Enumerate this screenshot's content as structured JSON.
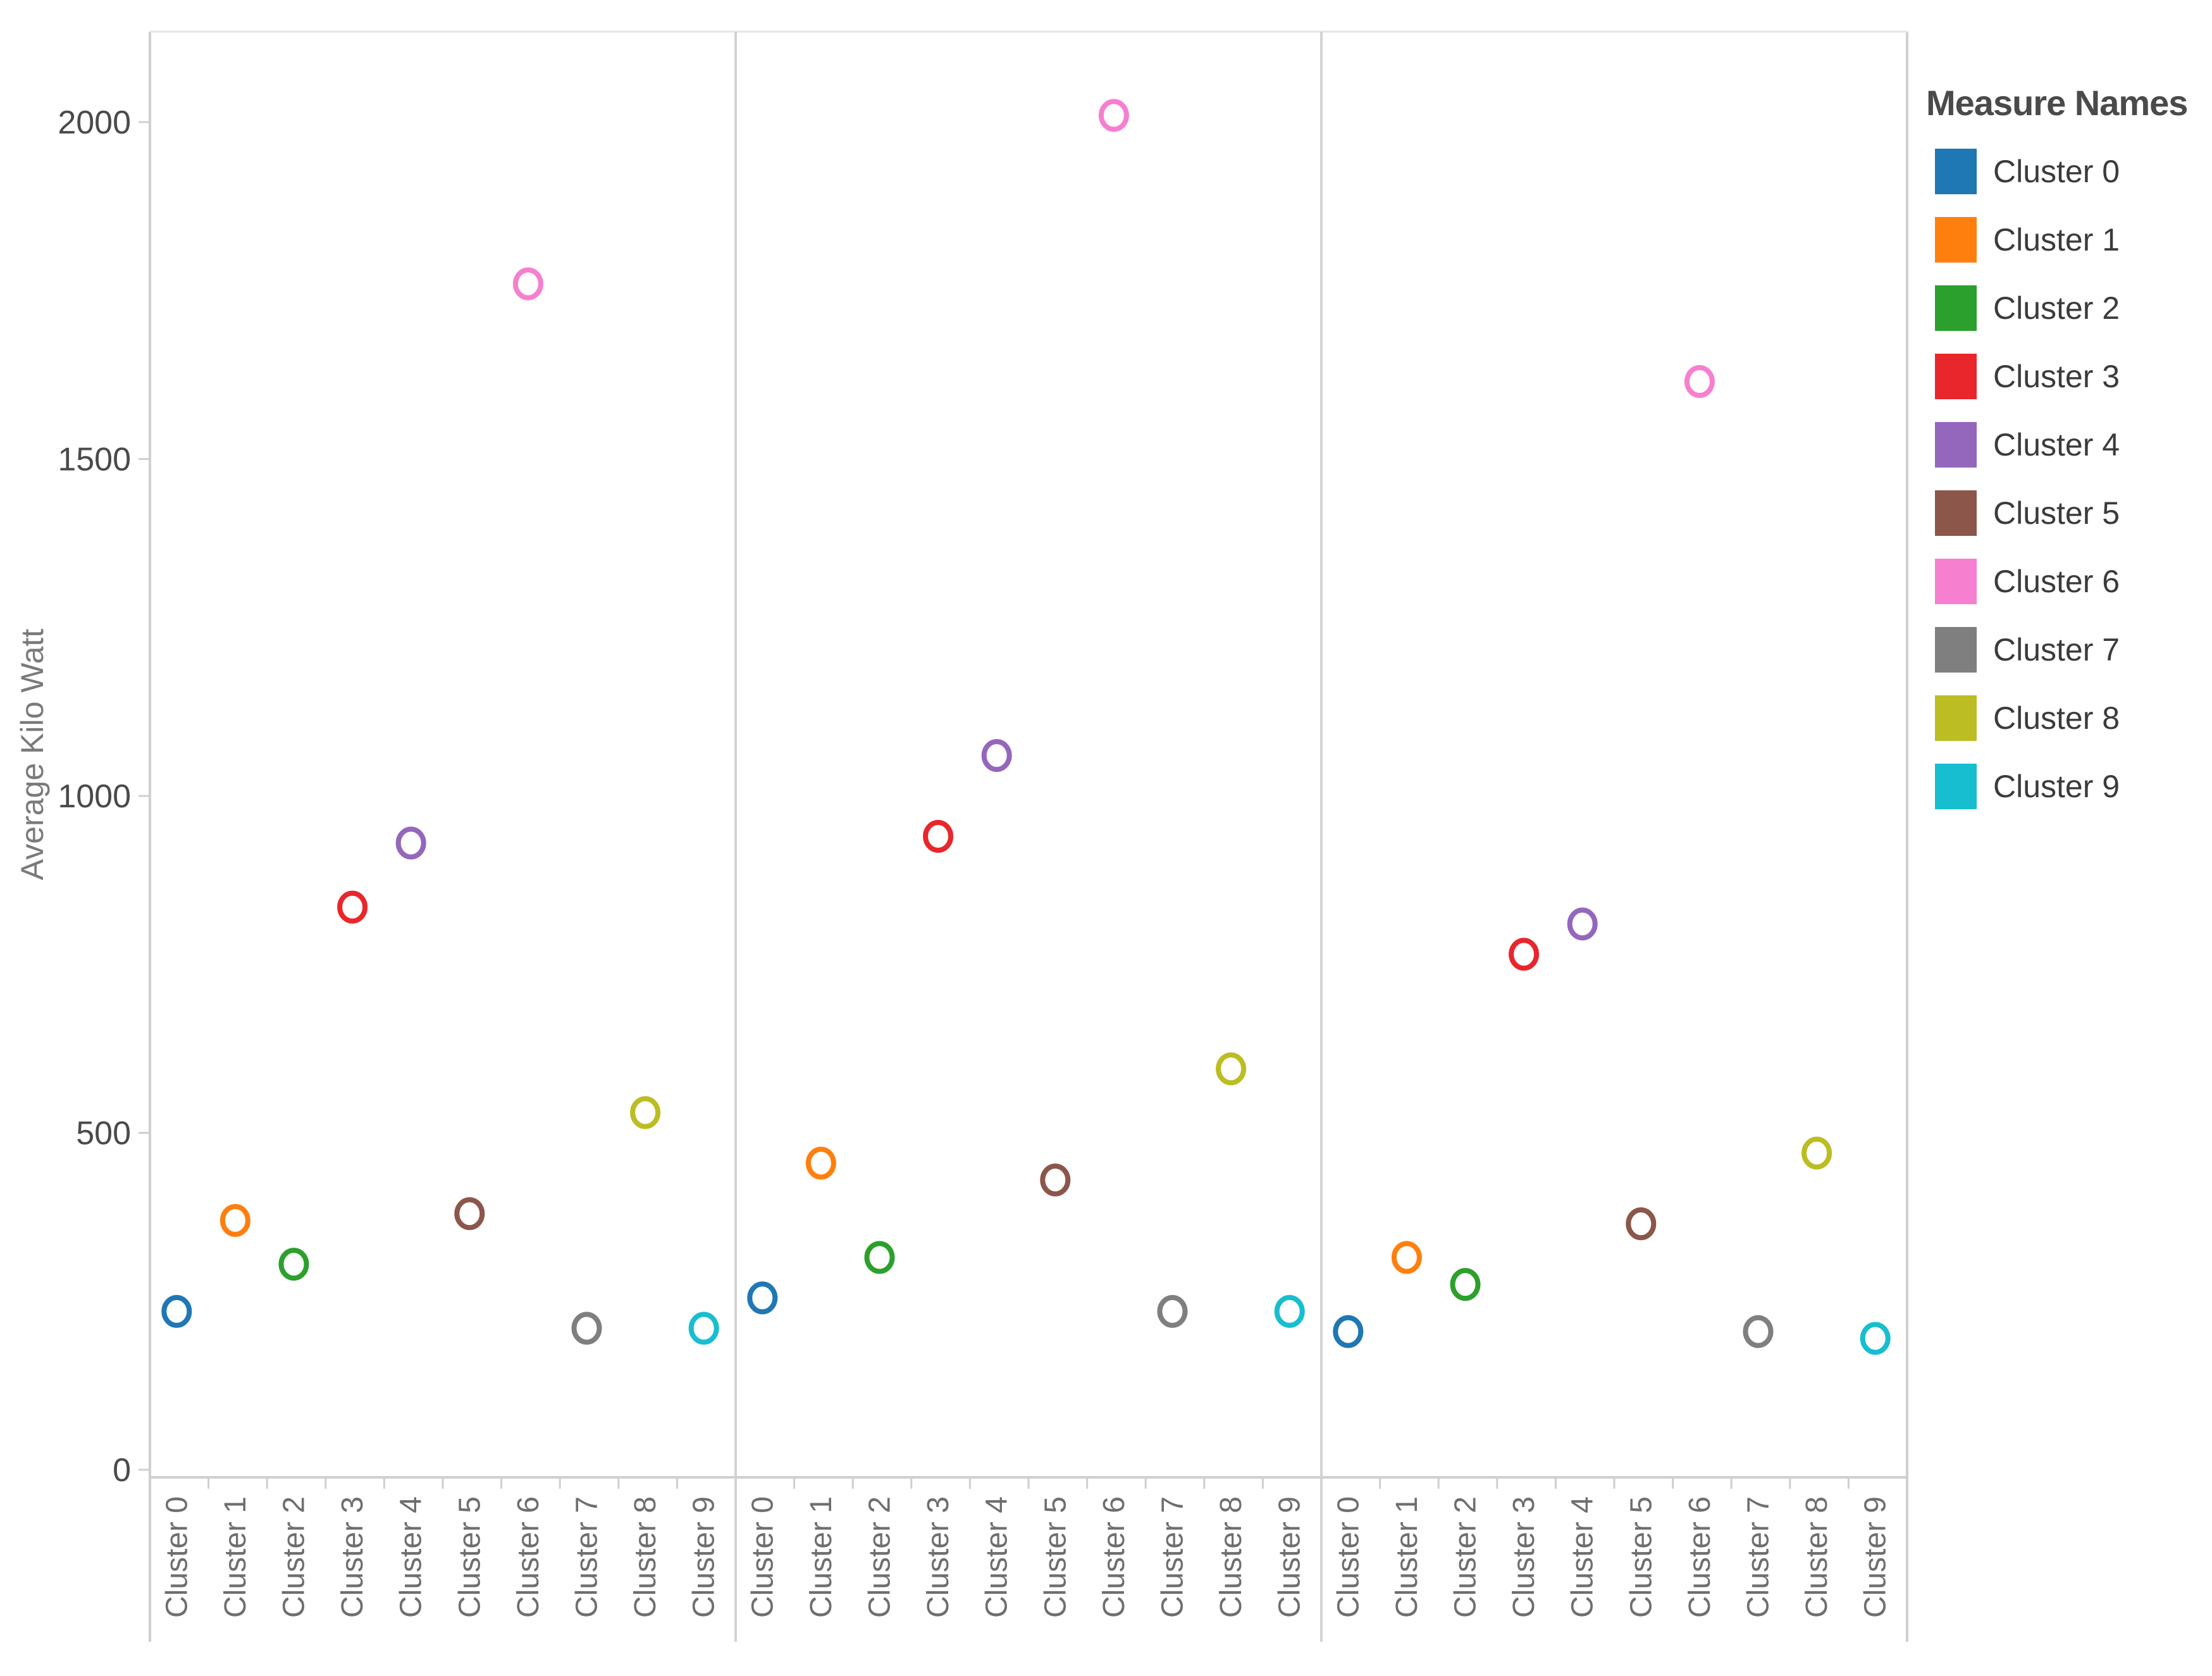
{
  "chart_data": {
    "type": "scatter",
    "title": "",
    "ylabel": "Average Kilo Watt",
    "xlabel": "",
    "ylim": [
      0,
      2100
    ],
    "yticks": [
      0,
      500,
      1000,
      1500,
      2000
    ],
    "categories": [
      "Cluster 0",
      "Cluster 1",
      "Cluster 2",
      "Cluster 3",
      "Cluster 4",
      "Cluster 5",
      "Cluster 6",
      "Cluster 7",
      "Cluster 8",
      "Cluster 9"
    ],
    "panels": [
      {
        "name": "",
        "values": [
          235,
          370,
          305,
          835,
          930,
          380,
          1760,
          210,
          530,
          210
        ]
      },
      {
        "name": "",
        "values": [
          255,
          455,
          315,
          940,
          1060,
          430,
          2010,
          235,
          595,
          235
        ]
      },
      {
        "name": "",
        "values": [
          205,
          315,
          275,
          765,
          810,
          365,
          1615,
          205,
          470,
          195
        ]
      }
    ],
    "colors": [
      "#1f77b4",
      "#ff7f0e",
      "#2ca02c",
      "#e8262b",
      "#9467bd",
      "#8c564b",
      "#f77fcf",
      "#7f7f7f",
      "#bcbd22",
      "#17becf"
    ],
    "legend": {
      "title": "Measure Names",
      "position": "right",
      "items": [
        "Cluster 0",
        "Cluster 1",
        "Cluster 2",
        "Cluster 3",
        "Cluster 4",
        "Cluster 5",
        "Cluster 6",
        "Cluster 7",
        "Cluster 8",
        "Cluster 9"
      ]
    },
    "grid": false
  }
}
